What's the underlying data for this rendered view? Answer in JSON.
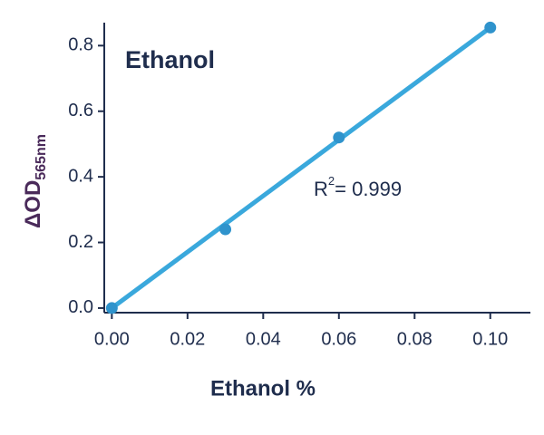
{
  "chart_data": {
    "type": "scatter",
    "title": "Ethanol",
    "x_label": "Ethanol %",
    "y_label": {
      "text": "ΔOD",
      "subscript": "565nm"
    },
    "annotation": {
      "prefix": "R",
      "superscript": "2",
      "text": "= 0.999"
    },
    "series": [
      {
        "color": "#2f93cc",
        "x": [
          0,
          0.03,
          0.06,
          0.1
        ],
        "values": [
          0,
          0.24,
          0.52,
          0.855
        ]
      }
    ],
    "fit": {
      "color": "#3aa8dc",
      "x": [
        0,
        0.1
      ],
      "values": [
        0,
        0.855
      ]
    },
    "xlim": [
      -0.002,
      0.1106
    ],
    "ylim": [
      -0.014,
      0.87
    ],
    "xticks": [
      {
        "value": 0,
        "label": "0.00"
      },
      {
        "value": 0.02,
        "label": "0.02"
      },
      {
        "value": 0.04,
        "label": "0.04"
      },
      {
        "value": 0.06,
        "label": "0.06"
      },
      {
        "value": 0.08,
        "label": "0.08"
      },
      {
        "value": 0.1,
        "label": "0.10"
      }
    ],
    "yticks": [
      {
        "value": 0,
        "label": "0.0"
      },
      {
        "value": 0.2,
        "label": "0.2"
      },
      {
        "value": 0.4,
        "label": "0.4"
      },
      {
        "value": 0.6,
        "label": "0.6"
      },
      {
        "value": 0.8,
        "label": "0.8"
      }
    ]
  }
}
